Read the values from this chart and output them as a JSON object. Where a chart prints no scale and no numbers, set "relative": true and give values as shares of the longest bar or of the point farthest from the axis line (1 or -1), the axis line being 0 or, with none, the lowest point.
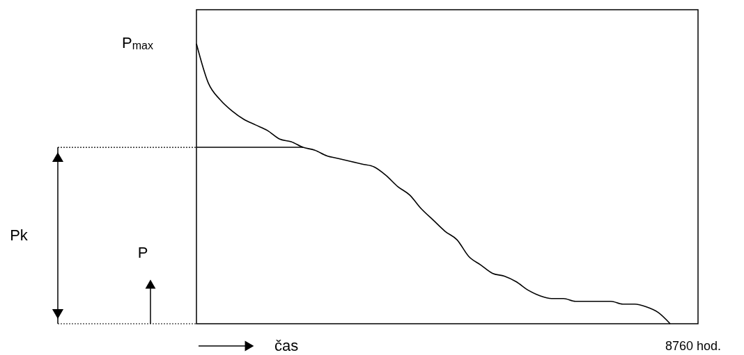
{
  "chart_data": {
    "type": "line",
    "relative": true,
    "xlabel": "čas",
    "ylabel": "P",
    "categories": [
      null,
      null,
      null,
      null,
      null,
      null,
      null,
      null,
      null,
      null,
      null,
      null,
      null,
      null,
      null,
      null,
      null,
      null,
      null,
      null,
      null,
      null,
      null,
      null,
      null,
      null,
      null,
      null,
      null,
      null,
      null,
      null,
      null,
      null,
      null,
      null,
      null,
      null,
      null,
      null,
      null
    ],
    "series": [
      {
        "color": "#000000",
        "values": [
          1.0,
          0.86,
          0.8,
          0.76,
          0.73,
          0.71,
          0.69,
          0.66,
          0.65,
          0.63,
          0.62,
          0.6,
          0.59,
          0.58,
          0.57,
          0.56,
          0.53,
          0.49,
          0.46,
          0.41,
          0.37,
          0.33,
          0.3,
          0.24,
          0.21,
          0.18,
          0.17,
          0.15,
          0.12,
          0.1,
          0.09,
          0.09,
          0.08,
          0.08,
          0.08,
          0.08,
          0.07,
          0.07,
          0.06,
          0.04,
          0
        ]
      }
    ],
    "ref_lines": [
      {
        "axis": "y",
        "value": 0.63,
        "label": "Pk"
      }
    ],
    "annotations": [
      "P$_{max}$",
      "8760 hod."
    ]
  }
}
